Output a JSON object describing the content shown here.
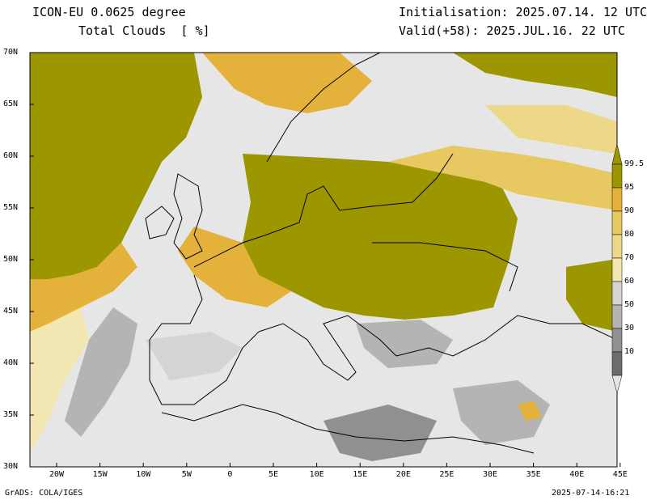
{
  "header": {
    "model_line": "ICON-EU 0.0625 degree",
    "variable_line": "Total Clouds  [ %]",
    "init_line": "Initialisation: 2025.07.14. 12 UTC",
    "valid_line": "Valid(+58): 2025.JUL.16. 22 UTC"
  },
  "axes": {
    "lat_labels": [
      "70N",
      "65N",
      "60N",
      "55N",
      "50N",
      "45N",
      "40N",
      "35N",
      "30N"
    ],
    "lon_labels": [
      "20W",
      "15W",
      "10W",
      "5W",
      "0",
      "5E",
      "10E",
      "15E",
      "20E",
      "25E",
      "30E",
      "35E",
      "40E",
      "45E"
    ]
  },
  "legend": {
    "labels": [
      "99.5",
      "95",
      "90",
      "80",
      "70",
      "60",
      "50",
      "30",
      "10"
    ],
    "colors": [
      "#9c9600",
      "#e4b23a",
      "#e8c860",
      "#edd88a",
      "#f2e6b2",
      "#d4d4d4",
      "#b4b4b4",
      "#909090",
      "#6c6c6c"
    ],
    "background_color": "#e6e6e6"
  },
  "footer": {
    "left": "GrADS: COLA/IGES",
    "right": "2025-07-14-16:21"
  }
}
